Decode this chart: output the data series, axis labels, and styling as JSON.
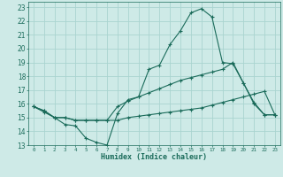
{
  "xlabel": "Humidex (Indice chaleur)",
  "bg_color": "#ceeae7",
  "grid_color": "#aad4d0",
  "line_color": "#1a6b5a",
  "xlim": [
    -0.5,
    23.5
  ],
  "ylim": [
    13,
    23.4
  ],
  "xticks": [
    0,
    1,
    2,
    3,
    4,
    5,
    6,
    7,
    8,
    9,
    10,
    11,
    12,
    13,
    14,
    15,
    16,
    17,
    18,
    19,
    20,
    21,
    22,
    23
  ],
  "yticks": [
    13,
    14,
    15,
    16,
    17,
    18,
    19,
    20,
    21,
    22,
    23
  ],
  "lines": [
    {
      "x": [
        0,
        1,
        2,
        3,
        4,
        5,
        6,
        7,
        8,
        9,
        10,
        11,
        12,
        13,
        14,
        15,
        16,
        17,
        18,
        19,
        20,
        21,
        22,
        23
      ],
      "y": [
        15.8,
        15.4,
        15.0,
        14.5,
        14.4,
        13.5,
        13.2,
        13.0,
        15.3,
        16.3,
        16.5,
        18.5,
        18.8,
        20.3,
        21.3,
        22.6,
        22.9,
        22.3,
        19.0,
        18.9,
        17.5,
        16.0,
        15.2,
        15.2
      ]
    },
    {
      "x": [
        0,
        1,
        2,
        3,
        4,
        5,
        6,
        7,
        8,
        9,
        10,
        11,
        12,
        13,
        14,
        15,
        16,
        17,
        18,
        19,
        20,
        21,
        22,
        23
      ],
      "y": [
        15.8,
        15.5,
        15.0,
        15.0,
        14.8,
        14.8,
        14.8,
        14.8,
        14.8,
        15.0,
        15.1,
        15.2,
        15.3,
        15.4,
        15.5,
        15.6,
        15.7,
        15.9,
        16.1,
        16.3,
        16.5,
        16.7,
        16.9,
        15.2
      ]
    },
    {
      "x": [
        0,
        1,
        2,
        3,
        4,
        5,
        6,
        7,
        8,
        9,
        10,
        11,
        12,
        13,
        14,
        15,
        16,
        17,
        18,
        19,
        20,
        21,
        22,
        23
      ],
      "y": [
        15.8,
        15.5,
        15.0,
        15.0,
        14.8,
        14.8,
        14.8,
        14.8,
        15.8,
        16.2,
        16.5,
        16.8,
        17.1,
        17.4,
        17.7,
        17.9,
        18.1,
        18.3,
        18.5,
        19.0,
        17.5,
        16.1,
        15.2,
        15.2
      ]
    }
  ]
}
